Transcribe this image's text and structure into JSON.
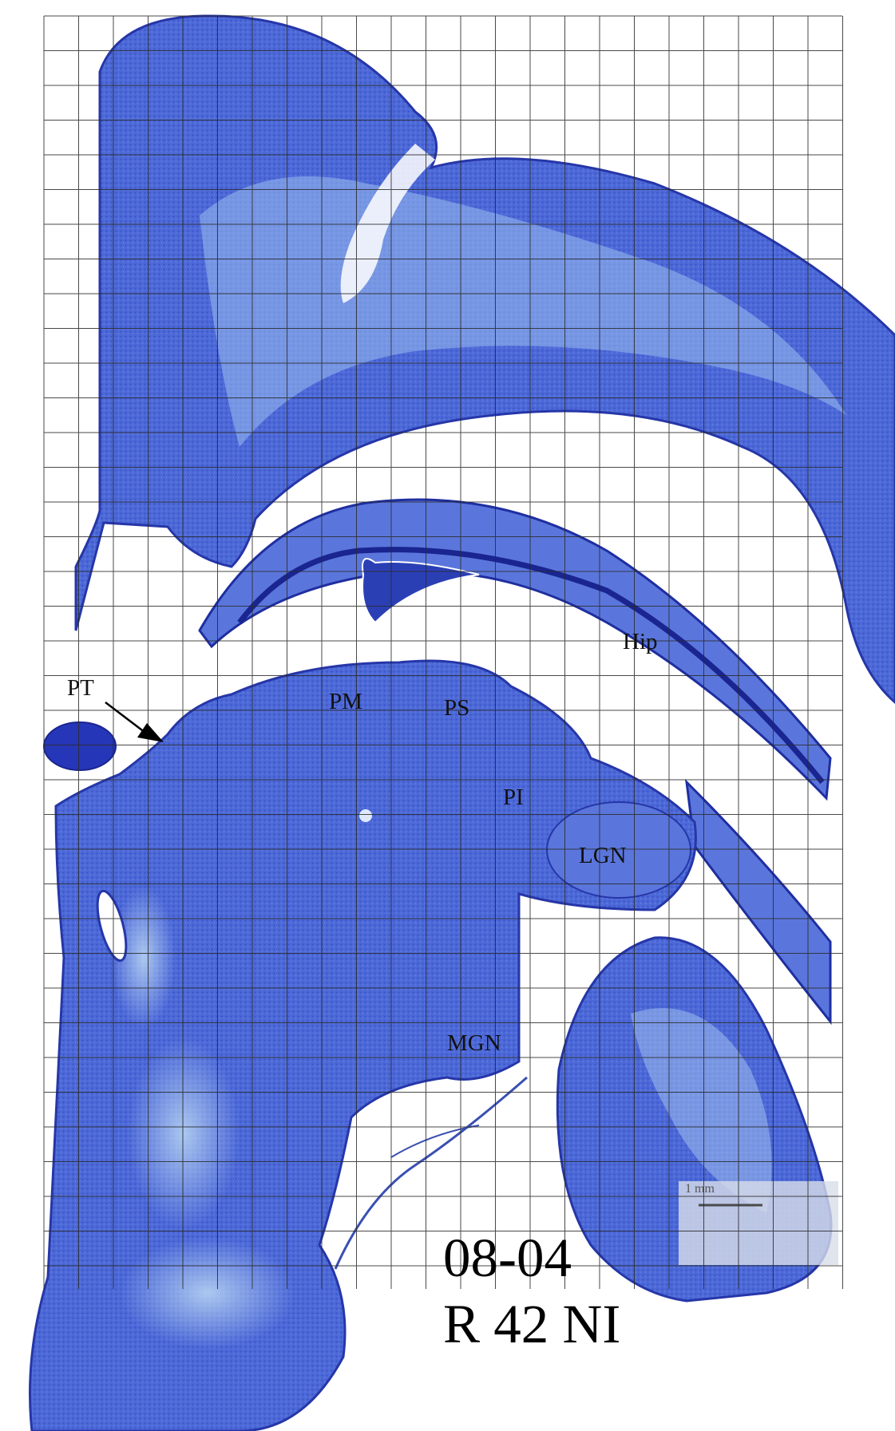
{
  "labels": {
    "pt": "PT",
    "pm": "PM",
    "ps": "PS",
    "pi": "PI",
    "lgn": "LGN",
    "mgn": "MGN",
    "hip": "Hip"
  },
  "case_id": {
    "line1": "08-04",
    "line2": "R 42 NI"
  },
  "scale_bar_text": "1 mm",
  "colors": {
    "tissue": "#4a66d6",
    "tissue_dark": "#2c44c0",
    "tissue_light": "#8fb3ea",
    "grid": "#2a2a2a",
    "background": "#ffffff"
  }
}
